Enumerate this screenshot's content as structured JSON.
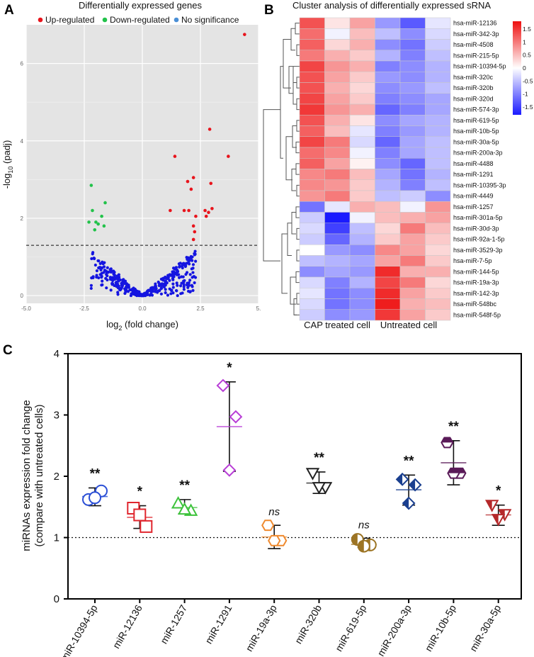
{
  "panels": {
    "a": {
      "letter": "A"
    },
    "b": {
      "letter": "B"
    },
    "c": {
      "letter": "C"
    }
  },
  "colors": {
    "up": "#e8141c",
    "down": "#22c24a",
    "nosig": "#1515e0",
    "legend_nosig": "#4a8fd6",
    "volcano_bg": "#e4e4e4",
    "heat_low": "#1a1aff",
    "heat_mid": "#ffffff",
    "heat_high": "#ee1010"
  },
  "chart_data": [
    {
      "type": "scatter",
      "id": "volcano",
      "title": "Differentially expressed genes",
      "xlabel": "log2 (fold change)",
      "xlabel_main": "log",
      "xlabel_sub": "2",
      "xlabel_rest": " (fold change)",
      "ylabel_pre": "-log",
      "ylabel_sub": "10",
      "ylabel_rest": " (padj)",
      "xlim": [
        -5,
        5
      ],
      "ylim": [
        -0.2,
        7.0
      ],
      "xticks": [
        "-5.0",
        "-2.5",
        "0.0",
        "2.5",
        "5."
      ],
      "xtick_values": [
        -5,
        -2.5,
        0,
        2.5,
        5
      ],
      "yticks": [
        "0",
        "2",
        "4",
        "6"
      ],
      "ytick_values": [
        0,
        2,
        4,
        6
      ],
      "threshold_y": 1.3,
      "legend": [
        {
          "label": "Up-regulated",
          "key": "up"
        },
        {
          "label": "Down-regulated",
          "key": "down"
        },
        {
          "label": "No significance",
          "key": "legend_nosig"
        }
      ],
      "up_points": [
        [
          4.4,
          6.75
        ],
        [
          2.9,
          4.3
        ],
        [
          3.7,
          3.6
        ],
        [
          1.4,
          3.6
        ],
        [
          2.2,
          3.05
        ],
        [
          2.1,
          2.75
        ],
        [
          1.95,
          2.95
        ],
        [
          2.95,
          2.9
        ],
        [
          2.7,
          2.2
        ],
        [
          1.8,
          2.2
        ],
        [
          2.0,
          2.2
        ],
        [
          1.2,
          2.2
        ],
        [
          2.85,
          2.15
        ],
        [
          3.0,
          2.25
        ],
        [
          2.75,
          2.05
        ],
        [
          2.3,
          2.05
        ],
        [
          2.2,
          1.8
        ],
        [
          2.25,
          1.65
        ],
        [
          2.2,
          1.45
        ]
      ],
      "down_points": [
        [
          -2.2,
          2.85
        ],
        [
          -1.6,
          2.4
        ],
        [
          -2.15,
          2.2
        ],
        [
          -1.75,
          2.05
        ],
        [
          -2.0,
          1.9
        ],
        [
          -1.9,
          1.85
        ],
        [
          -2.3,
          1.9
        ],
        [
          -2.05,
          1.7
        ],
        [
          -1.65,
          1.8
        ]
      ]
    },
    {
      "type": "heatmap",
      "id": "cluster",
      "title": "Cluster analysis of differentially expressed sRNA",
      "xlabel_left": "CAP treated cell",
      "xlabel_right": "Untreated cell",
      "rows": [
        "hsa-miR-12136",
        "hsa-miR-342-3p",
        "hsa-miR-4508",
        "hsa-miR-215-5p",
        "hsa-miR-10394-5p",
        "hsa-miR-320c",
        "hsa-miR-320b",
        "hsa-miR-320d",
        "hsa-miR-574-3p",
        "hsa-miR-619-5p",
        "hsa-miR-10b-5p",
        "hsa-miR-30a-5p",
        "hsa-miR-200a-3p",
        "hsa-miR-4488",
        "hsa-miR-1291",
        "hsa-miR-10395-3p",
        "hsa-miR-4449",
        "hsa-miR-1257",
        "hsa-miR-301a-5p",
        "hsa-miR-30d-3p",
        "hsa-miR-92a-1-5p",
        "hsa-miR-3529-3p",
        "hsa-miR-7-5p",
        "hsa-miR-144-5p",
        "hsa-miR-19a-3p",
        "hsa-miR-142-3p",
        "hsa-miR-548bc",
        "hsa-miR-548f-5p"
      ],
      "values": [
        [
          1.3,
          0.2,
          0.7,
          -0.8,
          -1.3,
          -0.2
        ],
        [
          1.1,
          -0.1,
          0.5,
          -0.5,
          -0.9,
          -0.3
        ],
        [
          1.2,
          0.3,
          0.6,
          -0.9,
          -1.1,
          -0.4
        ],
        [
          1.0,
          0.6,
          0.4,
          -0.6,
          -1.0,
          -0.5
        ],
        [
          1.4,
          0.8,
          0.6,
          -1.0,
          -0.9,
          -0.6
        ],
        [
          1.3,
          0.7,
          0.4,
          -0.8,
          -0.9,
          -0.6
        ],
        [
          1.3,
          0.6,
          0.3,
          -0.9,
          -0.8,
          -0.5
        ],
        [
          1.4,
          0.7,
          0.4,
          -1.0,
          -0.9,
          -0.7
        ],
        [
          1.5,
          0.8,
          0.6,
          -1.2,
          -1.0,
          -0.7
        ],
        [
          1.3,
          0.6,
          0.2,
          -0.9,
          -0.7,
          -0.6
        ],
        [
          1.2,
          0.5,
          -0.2,
          -1.0,
          -0.8,
          -0.6
        ],
        [
          1.4,
          1.0,
          -0.3,
          -1.2,
          -0.7,
          -0.5
        ],
        [
          1.1,
          0.9,
          -0.1,
          -1.0,
          -0.7,
          -0.5
        ],
        [
          1.2,
          0.7,
          0.1,
          -0.9,
          -1.2,
          -0.5
        ],
        [
          0.9,
          1.0,
          0.5,
          -0.7,
          -1.1,
          -0.6
        ],
        [
          0.9,
          0.8,
          0.4,
          -0.6,
          -1.0,
          -0.5
        ],
        [
          0.8,
          1.0,
          0.4,
          -0.5,
          -0.4,
          -0.9
        ],
        [
          -1.1,
          -0.2,
          0.6,
          0.5,
          -0.1,
          0.8
        ],
        [
          -0.4,
          -1.8,
          -0.1,
          0.5,
          0.6,
          0.7
        ],
        [
          -0.3,
          -1.5,
          -0.5,
          0.3,
          1.0,
          0.5
        ],
        [
          -0.4,
          -1.2,
          -0.6,
          0.4,
          0.7,
          0.4
        ],
        [
          0.0,
          -0.8,
          -0.9,
          0.9,
          0.7,
          0.3
        ],
        [
          -0.5,
          -0.6,
          -0.7,
          0.7,
          1.0,
          0.4
        ],
        [
          -0.9,
          -0.7,
          -0.8,
          1.6,
          0.6,
          0.6
        ],
        [
          -0.3,
          -1.0,
          -0.6,
          1.4,
          1.0,
          0.3
        ],
        [
          -0.2,
          -1.1,
          -0.9,
          1.6,
          0.7,
          0.4
        ],
        [
          -0.3,
          -1.1,
          -0.9,
          1.7,
          0.6,
          0.5
        ],
        [
          -0.4,
          -0.9,
          -0.8,
          1.5,
          0.7,
          0.4
        ]
      ],
      "legend_ticks": [
        "1.5",
        "1",
        "0.5",
        "0",
        "-0.5",
        "-1",
        "-1.5"
      ],
      "legend_tick_values": [
        1.5,
        1,
        0.5,
        0,
        -0.5,
        -1,
        -1.5
      ],
      "legend_range": [
        -1.8,
        1.8
      ]
    },
    {
      "type": "scatter",
      "id": "qpcr",
      "ylabel_line1": "miRNAs expression fold change",
      "ylabel_line2": "(compare with untreated cells)",
      "ylim": [
        0,
        4
      ],
      "yticks": [
        "0",
        "1",
        "2",
        "3",
        "4"
      ],
      "ytick_values": [
        0,
        1,
        2,
        3,
        4
      ],
      "reference_line": 1,
      "categories": [
        "miR-10394-5p",
        "miR-12136",
        "miR-1257",
        "miR-1291",
        "miR-19a-3p",
        "miR-320b",
        "miR-619-5p",
        "miR-200a-3p",
        "miR-10b-5p",
        "miR-30a-5p"
      ],
      "series": [
        {
          "name": "miR-10394-5p",
          "marker": "circle",
          "color": "#2b4fd6",
          "fill": "none",
          "points": [
            1.62,
            1.76,
            1.65
          ],
          "mean": 1.67,
          "sd_low": 1.52,
          "sd_high": 1.81,
          "sig": "**"
        },
        {
          "name": "miR-12136",
          "marker": "square",
          "color": "#e0262e",
          "fill": "none",
          "points": [
            1.48,
            1.18,
            1.37
          ],
          "mean": 1.33,
          "sd_low": 1.15,
          "sd_high": 1.52,
          "sig": "*"
        },
        {
          "name": "miR-1257",
          "marker": "triangle-up",
          "color": "#3dc23b",
          "fill": "none",
          "points": [
            1.56,
            1.44,
            1.46
          ],
          "mean": 1.49,
          "sd_low": 1.39,
          "sd_high": 1.62,
          "sig": "**"
        },
        {
          "name": "miR-1291",
          "marker": "diamond",
          "color": "#b83dd6",
          "fill": "none",
          "points": [
            3.48,
            2.97,
            2.1
          ],
          "mean": 2.81,
          "sd_low": 2.08,
          "sd_high": 3.54,
          "sig": "*"
        },
        {
          "name": "miR-19a-3p",
          "marker": "hexagon",
          "color": "#ef8a2f",
          "fill": "none",
          "points": [
            1.2,
            0.95,
            0.95
          ],
          "mean": 1.01,
          "sd_low": 0.82,
          "sd_high": 1.2,
          "sig": "ns"
        },
        {
          "name": "miR-320b",
          "marker": "triangle-down",
          "color": "#222222",
          "fill": "none",
          "points": [
            2.05,
            1.82,
            1.82
          ],
          "mean": 1.89,
          "sd_low": 1.72,
          "sd_high": 2.07,
          "sig": "**"
        },
        {
          "name": "miR-619-5p",
          "marker": "half-circle",
          "color": "#9c7424",
          "fill": "#9c7424",
          "points": [
            0.97,
            0.88,
            0.86
          ],
          "mean": 0.89,
          "sd_low": 0.84,
          "sd_high": 0.99,
          "sig": "ns"
        },
        {
          "name": "miR-200a-3p",
          "marker": "half-diamond",
          "color": "#1a3f8f",
          "fill": "#1a3f8f",
          "points": [
            1.95,
            1.86,
            1.56
          ],
          "mean": 1.78,
          "sd_low": 1.53,
          "sd_high": 2.02,
          "sig": "**"
        },
        {
          "name": "miR-10b-5p",
          "marker": "half-hexagon",
          "color": "#5a1a58",
          "fill": "#5a1a58",
          "points": [
            2.55,
            2.05,
            2.05
          ],
          "mean": 2.22,
          "sd_low": 1.86,
          "sd_high": 2.58,
          "sig": "**"
        },
        {
          "name": "miR-30a-5p",
          "marker": "half-triangle-down",
          "color": "#b5282a",
          "fill": "#b5282a",
          "points": [
            1.53,
            1.38,
            1.3
          ],
          "mean": 1.37,
          "sd_low": 1.2,
          "sd_high": 1.53,
          "sig": "*"
        }
      ]
    }
  ]
}
